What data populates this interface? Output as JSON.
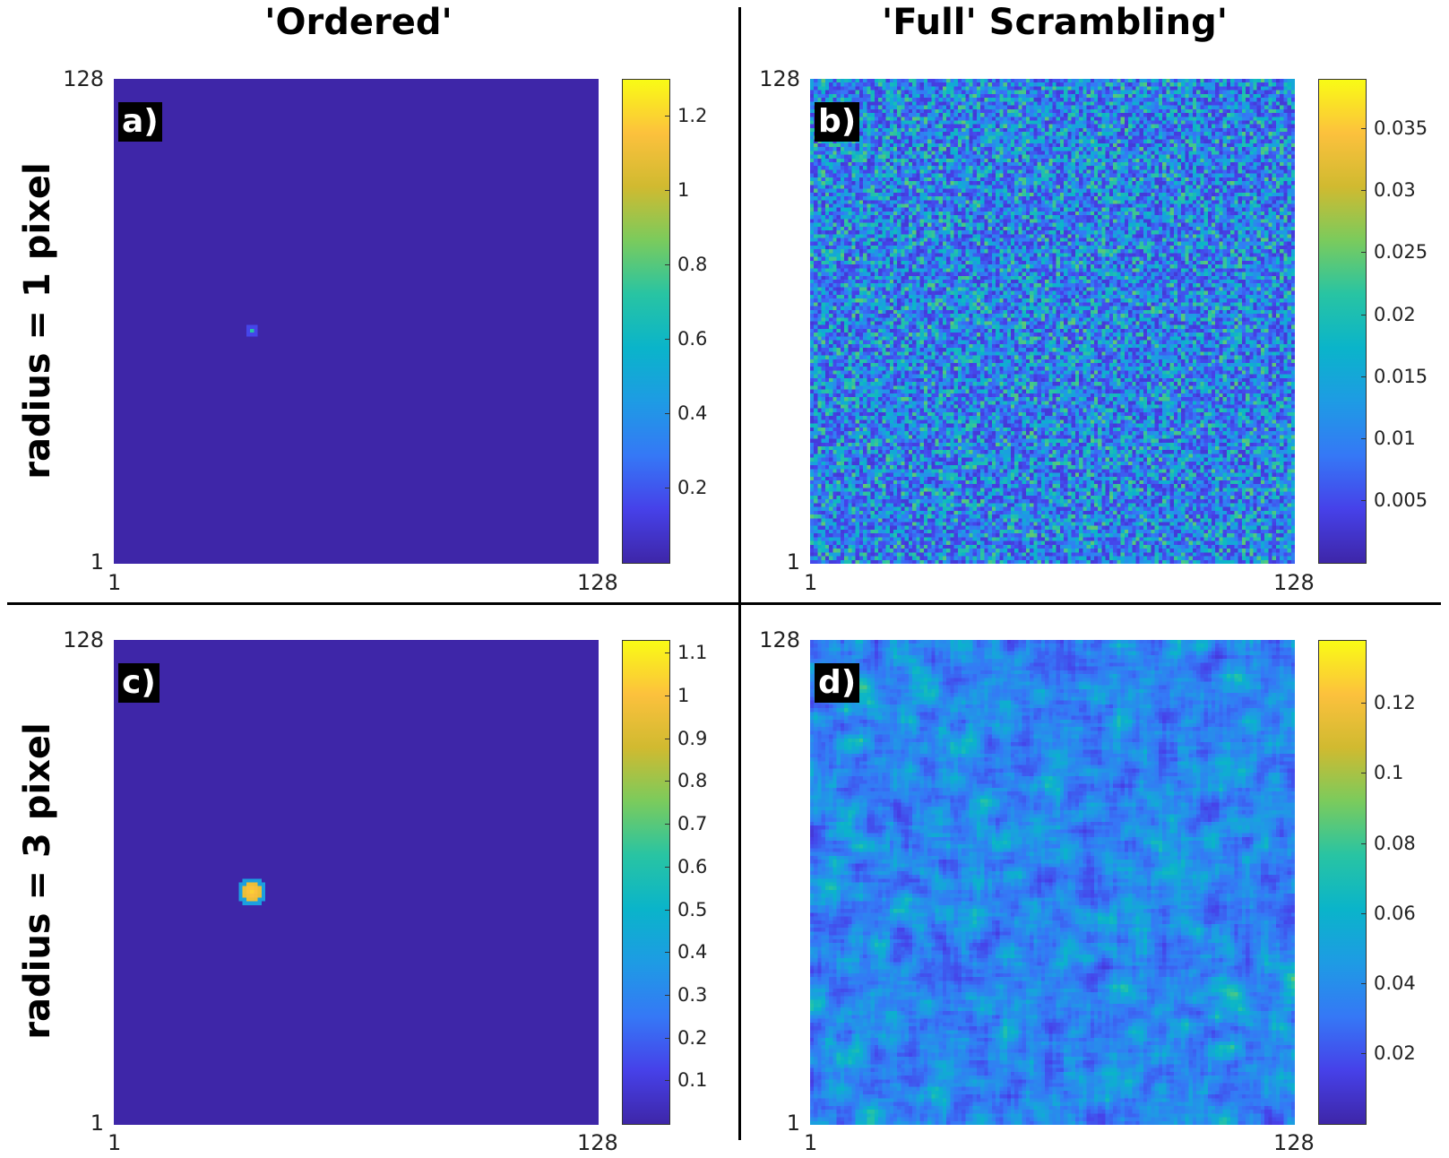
{
  "column_titles": [
    "'Ordered'",
    "'Full' Scrambling'"
  ],
  "row_titles": [
    "radius = 1 pixel",
    "radius = 3 pixel"
  ],
  "colors": {
    "colormap_low": "#3e26a8",
    "colormap_high": "#f9fb15",
    "divider": "#000000"
  },
  "chart_data": [
    {
      "type": "heatmap",
      "panel_label": "a)",
      "pattern": "point",
      "x_ticks": [
        "1",
        "128"
      ],
      "y_ticks": [
        "128",
        "1"
      ],
      "grid_size": 128,
      "spot_center": [
        36,
        66
      ],
      "spot_radius": 1,
      "colorbar": {
        "min": 0,
        "max": 1.3,
        "ticks": [
          0.2,
          0.4,
          0.6,
          0.8,
          1,
          1.2
        ],
        "tick_labels": [
          "0.2",
          "0.4",
          "0.6",
          "0.8",
          "1",
          "1.2"
        ]
      }
    },
    {
      "type": "heatmap",
      "panel_label": "b)",
      "pattern": "noise",
      "x_ticks": [
        "1",
        "128"
      ],
      "y_ticks": [
        "128",
        "1"
      ],
      "grid_size": 128,
      "smoothing": 0,
      "colorbar": {
        "min": 0,
        "max": 0.039,
        "ticks": [
          0.005,
          0.01,
          0.015,
          0.02,
          0.025,
          0.03,
          0.035
        ],
        "tick_labels": [
          "0.005",
          "0.01",
          "0.015",
          "0.02",
          "0.025",
          "0.03",
          "0.035"
        ]
      }
    },
    {
      "type": "heatmap",
      "panel_label": "c)",
      "pattern": "point",
      "x_ticks": [
        "1",
        "128"
      ],
      "y_ticks": [
        "128",
        "1"
      ],
      "grid_size": 128,
      "spot_center": [
        36,
        66
      ],
      "spot_radius": 3,
      "colorbar": {
        "min": 0,
        "max": 1.13,
        "ticks": [
          0.1,
          0.2,
          0.3,
          0.4,
          0.5,
          0.6,
          0.7,
          0.8,
          0.9,
          1,
          1.1
        ],
        "tick_labels": [
          "0.1",
          "0.2",
          "0.3",
          "0.4",
          "0.5",
          "0.6",
          "0.7",
          "0.8",
          "0.9",
          "1",
          "1.1"
        ]
      }
    },
    {
      "type": "heatmap",
      "panel_label": "d)",
      "pattern": "noise",
      "x_ticks": [
        "1",
        "128"
      ],
      "y_ticks": [
        "128",
        "1"
      ],
      "grid_size": 128,
      "smoothing": 2,
      "colorbar": {
        "min": 0,
        "max": 0.138,
        "ticks": [
          0.02,
          0.04,
          0.06,
          0.08,
          0.1,
          0.12
        ],
        "tick_labels": [
          "0.02",
          "0.04",
          "0.06",
          "0.08",
          "0.1",
          "0.12"
        ]
      }
    }
  ]
}
